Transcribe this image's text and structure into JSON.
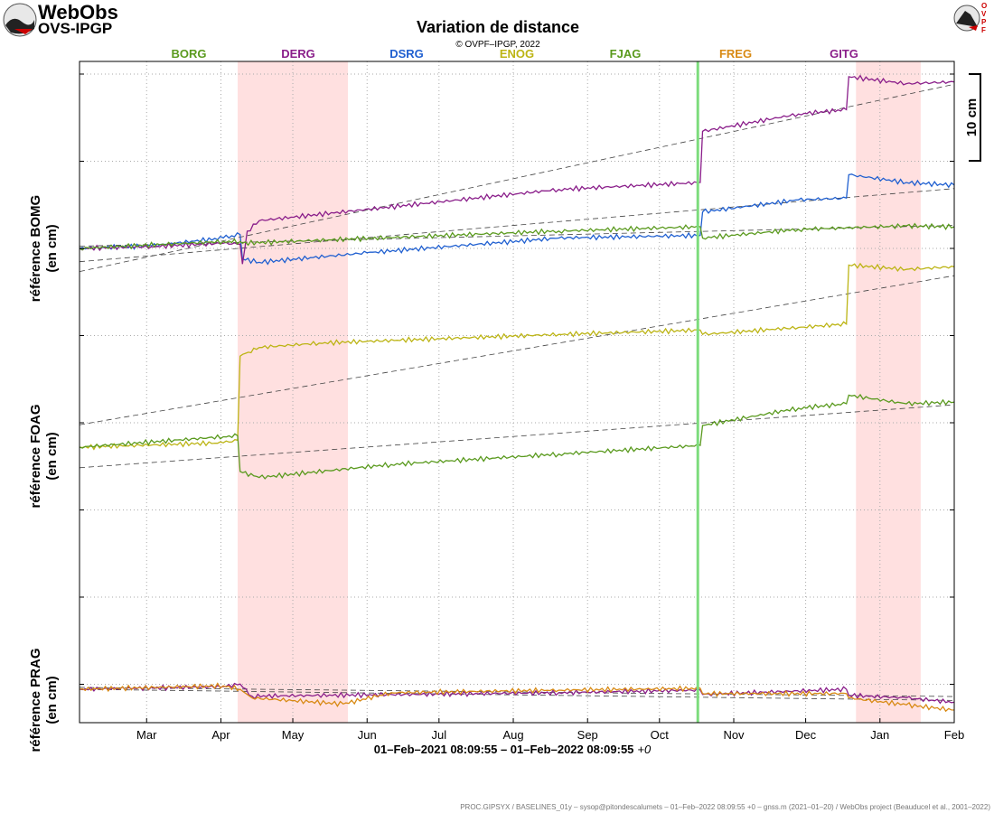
{
  "header": {
    "logo_name": "WebObs",
    "logo_sub": "OVS-IPGP",
    "right_logo_text": "OVPF"
  },
  "chart_data": {
    "type": "line",
    "title": "Variation de distance",
    "subtitle": "© OVPF–IPGP, 2022",
    "xrange": [
      "2021-02-01",
      "2022-02-01"
    ],
    "xtick_labels": [
      "Mar",
      "Apr",
      "May",
      "Jun",
      "Jul",
      "Aug",
      "Sep",
      "Oct",
      "Nov",
      "Dec",
      "Jan",
      "Feb"
    ],
    "xlabel": "01–Feb–2021 08:09:55 – 01–Feb–2022 08:09:55",
    "xlabel_suffix": "+0",
    "scale_bar_label": "10 cm",
    "grid": true,
    "legend": [
      {
        "name": "BORG",
        "color": "#5a9a1e"
      },
      {
        "name": "DERG",
        "color": "#8a1e8a"
      },
      {
        "name": "DSRG",
        "color": "#1f5fd0"
      },
      {
        "name": "ENOG",
        "color": "#bcb414"
      },
      {
        "name": "FJAG",
        "color": "#5a9a1e"
      },
      {
        "name": "FREG",
        "color": "#d88a14"
      },
      {
        "name": "GITG",
        "color": "#8a1e8a"
      }
    ],
    "legend_placement": "top",
    "shaded_periods": [
      {
        "start": "2021-04-08",
        "end": "2021-05-24",
        "color": "#ffe0e0"
      },
      {
        "start": "2021-12-22",
        "end": "2022-01-18",
        "color": "#ffe0e0"
      }
    ],
    "event_marker": {
      "date": "2021-10-17",
      "color": "#7ddc7d"
    },
    "panels": [
      {
        "ylabel": "référence BOMG",
        "yunit": "(en cm)",
        "series": [
          {
            "name": "DSRG",
            "color": "#1f5fd0",
            "values": [
              [
                0,
                0
              ],
              [
                30,
                0.3
              ],
              [
                60,
                1.2
              ],
              [
                67,
                1.6
              ],
              [
                68,
                -1.2
              ],
              [
                75,
                -1.6
              ],
              [
                120,
                -0.5
              ],
              [
                200,
                1.2
              ],
              [
                259,
                1.5
              ],
              [
                260,
                4.2
              ],
              [
                300,
                5.6
              ],
              [
                320,
                5.8
              ],
              [
                321,
                8.5
              ],
              [
                345,
                7.6
              ],
              [
                365,
                7.3
              ]
            ]
          },
          {
            "name": "DERG",
            "color": "#8a1e8a",
            "values": [
              [
                0,
                0
              ],
              [
                30,
                0.2
              ],
              [
                60,
                0.6
              ],
              [
                67,
                0.5
              ],
              [
                68,
                -1.8
              ],
              [
                70,
                2.0
              ],
              [
                75,
                3.2
              ],
              [
                200,
                6.8
              ],
              [
                259,
                7.6
              ],
              [
                260,
                13.5
              ],
              [
                300,
                15.5
              ],
              [
                320,
                16.0
              ],
              [
                321,
                19.8
              ],
              [
                345,
                19.0
              ],
              [
                365,
                19.2
              ]
            ]
          },
          {
            "name": "BORG",
            "color": "#5a9a1e",
            "values": [
              [
                0,
                0
              ],
              [
                60,
                0.8
              ],
              [
                67,
                0.8
              ],
              [
                68,
                0.6
              ],
              [
                200,
                2.0
              ],
              [
                259,
                2.5
              ],
              [
                260,
                1.2
              ],
              [
                300,
                2.2
              ],
              [
                345,
                2.6
              ],
              [
                365,
                2.5
              ]
            ]
          }
        ]
      },
      {
        "ylabel": "référence FOAG",
        "yunit": "(en cm)",
        "series": [
          {
            "name": "ENOG",
            "color": "#bcb414",
            "values": [
              [
                0,
                0
              ],
              [
                60,
                0.5
              ],
              [
                66,
                0.8
              ],
              [
                67,
                10.5
              ],
              [
                75,
                11.5
              ],
              [
                100,
                12.0
              ],
              [
                200,
                13.0
              ],
              [
                259,
                13.5
              ],
              [
                260,
                13.0
              ],
              [
                300,
                13.8
              ],
              [
                320,
                14.2
              ],
              [
                321,
                21.0
              ],
              [
                345,
                20.5
              ],
              [
                365,
                20.8
              ]
            ]
          },
          {
            "name": "FJAG",
            "color": "#5a9a1e",
            "values": [
              [
                0,
                0
              ],
              [
                60,
                1.2
              ],
              [
                66,
                1.3
              ],
              [
                67,
                -2.8
              ],
              [
                75,
                -3.5
              ],
              [
                130,
                -2.0
              ],
              [
                200,
                -0.8
              ],
              [
                259,
                0.2
              ],
              [
                260,
                2.5
              ],
              [
                300,
                4.5
              ],
              [
                320,
                5.0
              ],
              [
                321,
                6.0
              ],
              [
                345,
                5.0
              ],
              [
                365,
                5.2
              ]
            ]
          }
        ]
      },
      {
        "ylabel": "référence PRAG",
        "yunit": "(en cm)",
        "series": [
          {
            "name": "GITG",
            "color": "#8a1e8a",
            "values": [
              [
                0,
                0
              ],
              [
                60,
                0.3
              ],
              [
                67,
                0.6
              ],
              [
                72,
                -0.8
              ],
              [
                200,
                -0.4
              ],
              [
                259,
                -0.1
              ],
              [
                260,
                -0.6
              ],
              [
                320,
                0.0
              ],
              [
                321,
                -0.7
              ],
              [
                345,
                -1.0
              ],
              [
                365,
                -1.5
              ]
            ]
          },
          {
            "name": "FREG",
            "color": "#d88a14",
            "values": [
              [
                0,
                0
              ],
              [
                60,
                0.4
              ],
              [
                67,
                0.0
              ],
              [
                72,
                -1.0
              ],
              [
                110,
                -1.7
              ],
              [
                130,
                -0.4
              ],
              [
                200,
                -0.1
              ],
              [
                259,
                0.1
              ],
              [
                260,
                -0.5
              ],
              [
                320,
                -0.5
              ],
              [
                321,
                -1.0
              ],
              [
                345,
                -1.8
              ],
              [
                365,
                -2.4
              ]
            ]
          }
        ]
      }
    ]
  },
  "footer": {
    "credits": "PROC.GIPSYX / BASELINES_01y – sysop@pitondescalumets – 01–Feb–2022 08:09:55 +0 – gnss.m (2021–01–20) / WebObs project (Beauducel et al., 2001–2022)"
  }
}
